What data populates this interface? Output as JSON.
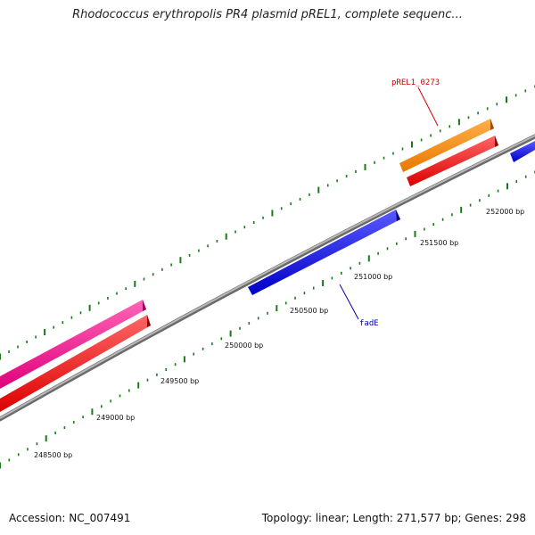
{
  "title": "Rhodococcus erythropolis PR4 plasmid pREL1, complete sequenc...",
  "footer": {
    "accession": "Accession: NC_007491",
    "summary": "Topology: linear; Length: 271,577 bp; Genes: 298"
  },
  "scale": {
    "labels": [
      "248500 bp",
      "249000 bp",
      "249500 bp",
      "250000 bp",
      "250500 bp",
      "251000 bp",
      "251500 bp",
      "252000 bp"
    ]
  },
  "gene_labels": {
    "gene_a": "pREL1_0273",
    "gene_b": "fadE"
  },
  "colors": {
    "tick": "#1a7a1a",
    "backbone": "#8c8c8c",
    "gene_blue": "#0000ee",
    "gene_red": "#ff1a1a",
    "gene_pink": "#ff1493",
    "gene_orange": "#ff8c00",
    "label_red": "#cc0000",
    "label_blue": "#0000aa"
  }
}
